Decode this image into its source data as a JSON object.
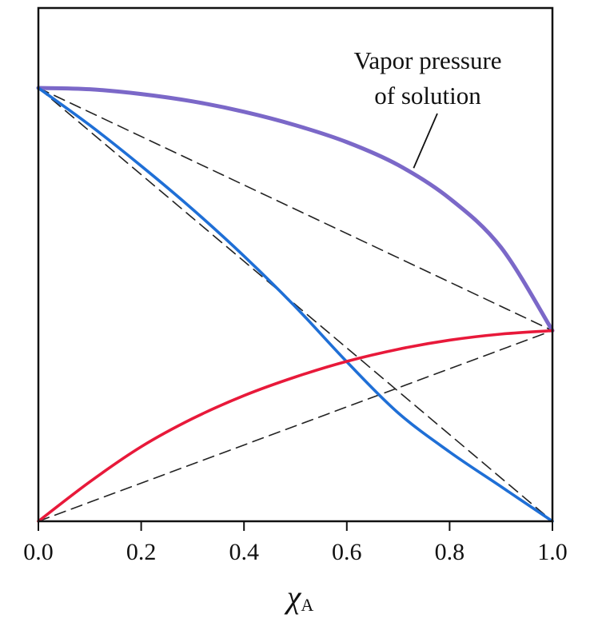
{
  "chart_data": {
    "type": "line",
    "xlabel": "χ",
    "xlabel_subscript": "A",
    "ylabel": "",
    "xlim": [
      0.0,
      1.0
    ],
    "ylim": [
      0.0,
      1.0
    ],
    "x_ticks": [
      "0.0",
      "0.2",
      "0.4",
      "0.6",
      "0.8",
      "1.0"
    ],
    "grid": false,
    "legend": "none",
    "series": [
      {
        "name": "",
        "role": "vapor pressure of solution",
        "style": "solid",
        "color": "#7b68c8",
        "x": [
          0.0,
          0.1,
          0.2,
          0.3,
          0.4,
          0.5,
          0.6,
          0.7,
          0.8,
          0.9,
          1.0
        ],
        "y": [
          1.0,
          0.997,
          0.986,
          0.969,
          0.945,
          0.914,
          0.875,
          0.822,
          0.745,
          0.632,
          0.44
        ]
      },
      {
        "name": "",
        "role": "component B partial pressure",
        "style": "solid",
        "color": "#1f6fd6",
        "x": [
          0.0,
          0.1,
          0.2,
          0.3,
          0.4,
          0.5,
          0.6,
          0.7,
          0.8,
          0.9,
          1.0
        ],
        "y": [
          1.0,
          0.914,
          0.82,
          0.72,
          0.612,
          0.495,
          0.368,
          0.25,
          0.16,
          0.08,
          0.0
        ]
      },
      {
        "name": "",
        "role": "component A partial pressure",
        "style": "solid",
        "color": "#e8193a",
        "x": [
          0.0,
          0.1,
          0.2,
          0.3,
          0.4,
          0.5,
          0.6,
          0.7,
          0.8,
          0.9,
          1.0
        ],
        "y": [
          0.0,
          0.091,
          0.172,
          0.237,
          0.29,
          0.333,
          0.369,
          0.397,
          0.418,
          0.432,
          0.44
        ]
      },
      {
        "name": "",
        "role": "ideal total (Raoult)",
        "style": "dashed",
        "color": "#222222",
        "x": [
          0.0,
          1.0
        ],
        "y": [
          1.0,
          0.44
        ]
      },
      {
        "name": "",
        "role": "ideal B (Raoult)",
        "style": "dashed",
        "color": "#222222",
        "x": [
          0.0,
          1.0
        ],
        "y": [
          1.0,
          0.0
        ]
      },
      {
        "name": "",
        "role": "ideal A (Raoult)",
        "style": "dashed",
        "color": "#222222",
        "x": [
          0.0,
          1.0
        ],
        "y": [
          0.0,
          0.44
        ]
      }
    ],
    "annotations": [
      {
        "lines": [
          "Vapor pressure",
          "of solution"
        ],
        "points_to": {
          "x": 0.73,
          "y": 0.815
        }
      }
    ]
  }
}
